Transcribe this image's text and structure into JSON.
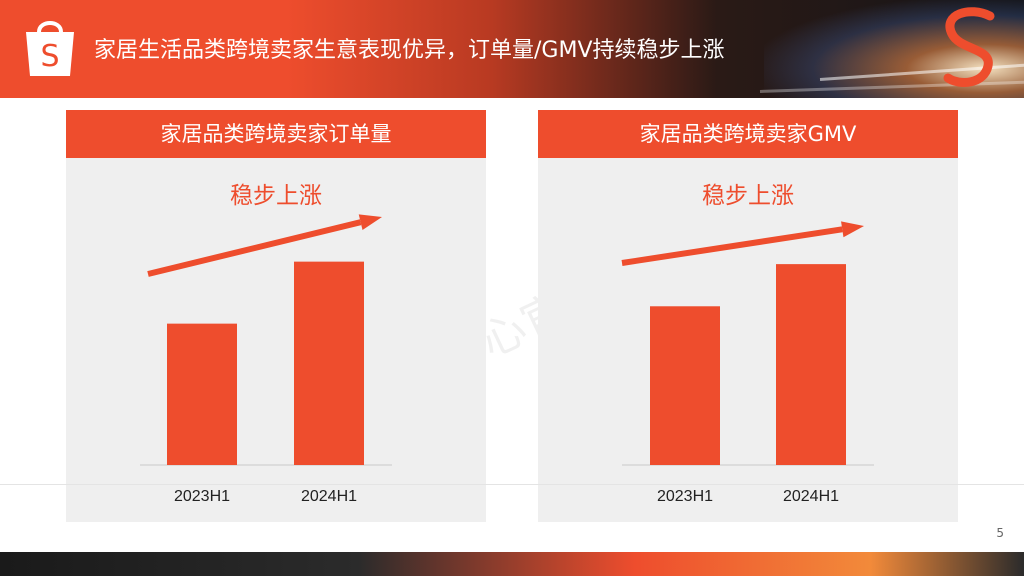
{
  "header": {
    "title": "家居生活品类跨境卖家生意表现优异，订单量/GMV持续稳步上涨",
    "logo_letter": "S"
  },
  "watermark": "心官",
  "page_number": "5",
  "colors": {
    "brand": "#ee4d2d",
    "panel_bg": "#efefef",
    "text_dark": "#222222"
  },
  "chart_data": [
    {
      "type": "bar",
      "title": "家居品类跨境卖家订单量",
      "annotation": "稳步上涨",
      "categories": [
        "2023H1",
        "2024H1"
      ],
      "values": [
        57,
        82
      ],
      "ylim": [
        0,
        100
      ],
      "grid": false,
      "value_labels": false,
      "trend_arrow": true
    },
    {
      "type": "bar",
      "title": "家居品类跨境卖家GMV",
      "annotation": "稳步上涨",
      "categories": [
        "2023H1",
        "2024H1"
      ],
      "values": [
        64,
        81
      ],
      "ylim": [
        0,
        100
      ],
      "grid": false,
      "value_labels": false,
      "trend_arrow": true
    }
  ]
}
